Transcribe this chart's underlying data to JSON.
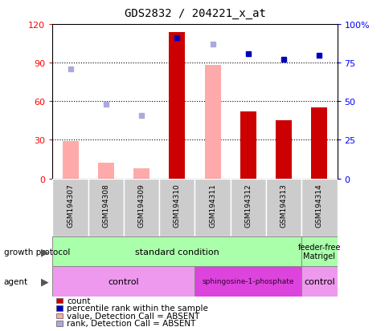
{
  "title": "GDS2832 / 204221_x_at",
  "samples": [
    "GSM194307",
    "GSM194308",
    "GSM194309",
    "GSM194310",
    "GSM194311",
    "GSM194312",
    "GSM194313",
    "GSM194314"
  ],
  "count_values": [
    null,
    null,
    null,
    114,
    null,
    52,
    45,
    55
  ],
  "count_absent_values": [
    29,
    12,
    8,
    null,
    88,
    null,
    null,
    null
  ],
  "percentile_rank": [
    null,
    null,
    null,
    91,
    null,
    81,
    77,
    80
  ],
  "rank_absent_values": [
    71,
    48,
    41,
    null,
    87,
    null,
    null,
    null
  ],
  "ylim_left": [
    0,
    120
  ],
  "ylim_right": [
    0,
    100
  ],
  "yticks_left": [
    0,
    30,
    60,
    90,
    120
  ],
  "yticks_right": [
    0,
    25,
    50,
    75,
    100
  ],
  "ytick_labels_right": [
    "0",
    "25",
    "50",
    "75",
    "100%"
  ],
  "count_color": "#cc0000",
  "count_absent_color": "#ffaaaa",
  "percentile_color": "#0000bb",
  "rank_absent_color": "#aaaadd",
  "bar_width": 0.45,
  "legend_items": [
    {
      "label": "count",
      "color": "#cc0000"
    },
    {
      "label": "percentile rank within the sample",
      "color": "#0000bb"
    },
    {
      "label": "value, Detection Call = ABSENT",
      "color": "#ffaaaa"
    },
    {
      "label": "rank, Detection Call = ABSENT",
      "color": "#aaaadd"
    }
  ]
}
